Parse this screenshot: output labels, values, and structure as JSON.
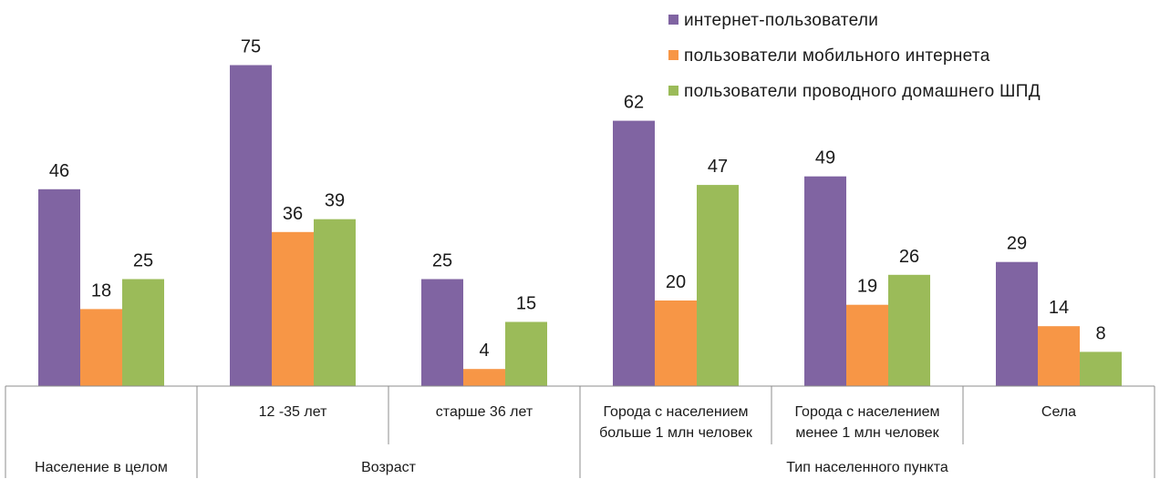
{
  "chart_data": {
    "type": "bar",
    "title": "",
    "xlabel": "",
    "ylabel": "",
    "ylim": [
      0,
      80
    ],
    "grid": false,
    "legend_position": "top-right",
    "categories": [
      "",
      "12 -35 лет",
      "старше 36 лет",
      "Города с населением больше 1 млн человек",
      "Города с населением менее 1 млн человек",
      "Села"
    ],
    "category_lines": [
      [],
      [
        "12 -35 лет"
      ],
      [
        "старше 36 лет"
      ],
      [
        "Города с населением",
        "больше 1 млн человек"
      ],
      [
        "Города с населением",
        "менее 1 млн человек"
      ],
      [
        "Села"
      ]
    ],
    "groups": [
      {
        "label": "Население  в целом",
        "categories": [
          0
        ]
      },
      {
        "label": "Возраст",
        "categories": [
          1,
          2
        ]
      },
      {
        "label": "Тип населенного пункта",
        "categories": [
          3,
          4,
          5
        ]
      }
    ],
    "series": [
      {
        "name": "интернет-пользователи",
        "color": "#8064A2",
        "values": [
          46,
          75,
          25,
          62,
          49,
          29
        ]
      },
      {
        "name": "пользователи  мобильного  интернета",
        "color": "#F79646",
        "values": [
          18,
          36,
          4,
          20,
          19,
          14
        ]
      },
      {
        "name": "пользователи  проводного  домашнего  ШПД",
        "color": "#9BBB59",
        "values": [
          25,
          39,
          15,
          47,
          26,
          8
        ]
      }
    ]
  }
}
